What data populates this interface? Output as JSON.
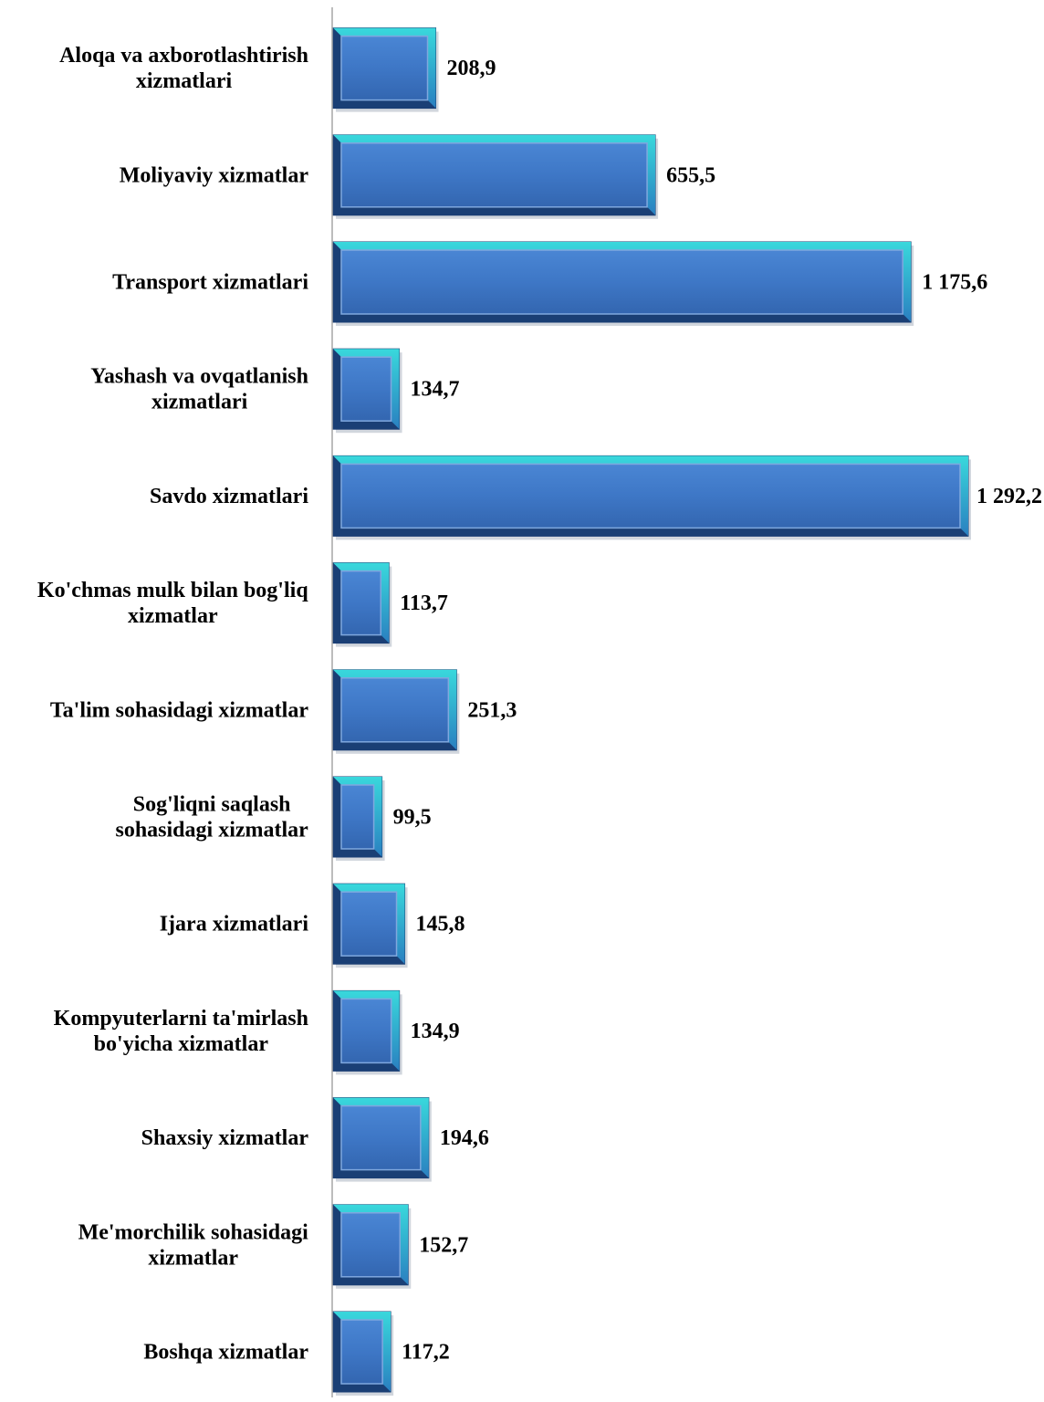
{
  "chart_data": {
    "type": "bar",
    "orientation": "horizontal",
    "title": "",
    "xlabel": "",
    "ylabel": "",
    "xlim": [
      0,
      1300
    ],
    "grid": false,
    "legend": "none",
    "bar_color": "#3E77C6",
    "bar_edge_color": "#1B3D73",
    "bar_highlight_color": "#2FD6DA",
    "categories": [
      "Aloqa va axborotlashtirish xizmatlari",
      "Moliyaviy xizmatlar",
      "Transport xizmatlari",
      "Yashash va ovqatlanish xizmatlari",
      "Savdo xizmatlari",
      "Ko'chmas mulk bilan bog'liq xizmatlar",
      "Ta'lim sohasidagi xizmatlar",
      "Sog'liqni saqlash sohasidagi xizmatlar",
      "Ijara xizmatlari",
      "Kompyuterlarni ta'mirlash bo'yicha xizmatlar",
      "Shaxsiy xizmatlar",
      "Me'morchilik sohasidagi xizmatlar",
      "Boshqa xizmatlar"
    ],
    "values": [
      208.9,
      655.5,
      1175.6,
      134.7,
      1292.2,
      113.7,
      251.3,
      99.5,
      145.8,
      134.9,
      194.6,
      152.7,
      117.2
    ],
    "value_labels": [
      "208,9",
      "655,5",
      "1 175,6",
      "134,7",
      "1 292,2",
      "113,7",
      "251,3",
      "99,5",
      "145,8",
      "134,9",
      "194,6",
      "152,7",
      "117,2"
    ]
  }
}
